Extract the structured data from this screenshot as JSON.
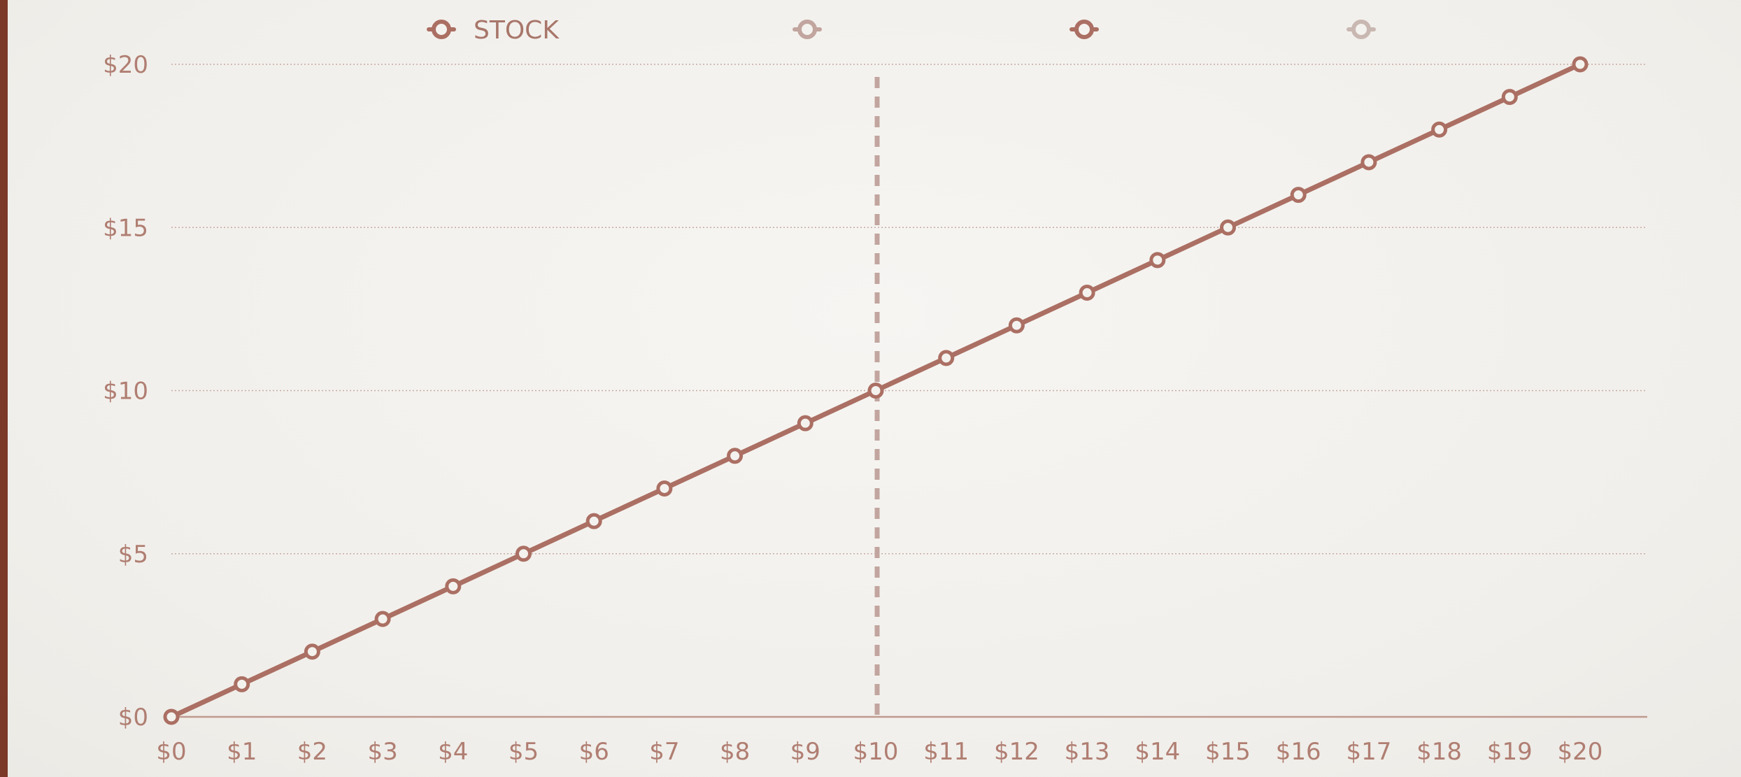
{
  "colors": {
    "background": "#f3f1ed",
    "left_bar": "#7a3a27",
    "series_stock": "#ab6f63",
    "series_faded": "#c1a59e",
    "series_faded_2": "#c9b8b2",
    "gridline": "#c8aaa2",
    "axis": "#c09a90",
    "tick_text": "#b07e72"
  },
  "chart_data": {
    "type": "line",
    "title": "",
    "xlabel": "",
    "ylabel": "",
    "x": [
      0,
      1,
      2,
      3,
      4,
      5,
      6,
      7,
      8,
      9,
      10,
      11,
      12,
      13,
      14,
      15,
      16,
      17,
      18,
      19,
      20
    ],
    "x_tick_labels": [
      "$0",
      "$1",
      "$2",
      "$3",
      "$4",
      "$5",
      "$6",
      "$7",
      "$8",
      "$9",
      "$10",
      "$11",
      "$12",
      "$13",
      "$14",
      "$15",
      "$16",
      "$17",
      "$18",
      "$19",
      "$20"
    ],
    "xlim": [
      0,
      21
    ],
    "ylim": [
      0,
      20
    ],
    "y_ticks": [
      0,
      5,
      10,
      15,
      20
    ],
    "y_tick_labels": [
      "$0",
      "$5",
      "$10",
      "$15",
      "$20"
    ],
    "grid": "horizontal-dotted",
    "legend_position": "top",
    "series": [
      {
        "name": "STOCK",
        "values": [
          0,
          1,
          2,
          3,
          4,
          5,
          6,
          7,
          8,
          9,
          10,
          11,
          12,
          13,
          14,
          15,
          16,
          17,
          18,
          19,
          20
        ]
      }
    ],
    "legend": [
      {
        "label": "STOCK",
        "color": "#ab6f63"
      },
      {
        "label": "",
        "color": "#c1a59e"
      },
      {
        "label": "",
        "color": "#ab6f63"
      },
      {
        "label": "",
        "color": "#c9b8b2"
      }
    ],
    "reference_line": {
      "x": 10,
      "style": "dashed",
      "color": "#c1a59e"
    }
  }
}
